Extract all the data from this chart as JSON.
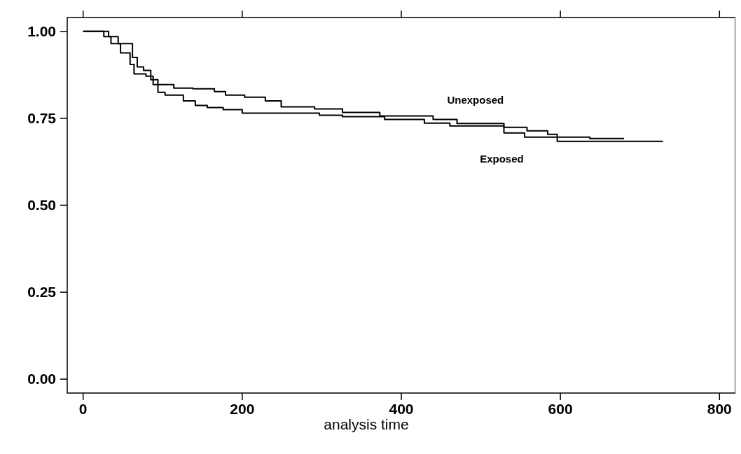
{
  "chart_data": {
    "type": "step",
    "xlabel": "analysis time",
    "xlim": [
      -20,
      820
    ],
    "xticks": [
      0,
      200,
      400,
      600,
      800
    ],
    "ylim": [
      -0.04,
      1.04
    ],
    "yticks": [
      {
        "value": 0,
        "label": "0.00"
      },
      {
        "value": 0.25,
        "label": "0.25"
      },
      {
        "value": 0.5,
        "label": "0.50"
      },
      {
        "value": 0.75,
        "label": "0.75"
      },
      {
        "value": 1,
        "label": "1.00"
      }
    ],
    "grid": false,
    "series": [
      {
        "name": "Unexposed",
        "color": "#000000",
        "x": [
          0,
          26,
          35,
          47,
          59,
          64,
          79,
          88,
          114,
          138,
          165,
          179,
          203,
          229,
          249,
          291,
          326,
          373,
          440,
          470,
          529,
          558,
          584,
          596,
          637,
          680
        ],
        "values": [
          1,
          0.985,
          0.965,
          0.938,
          0.905,
          0.878,
          0.871,
          0.847,
          0.837,
          0.835,
          0.827,
          0.817,
          0.811,
          0.8,
          0.783,
          0.777,
          0.767,
          0.757,
          0.747,
          0.735,
          0.724,
          0.714,
          0.704,
          0.696,
          0.692,
          0.692
        ]
      },
      {
        "name": "Exposed",
        "color": "#000000",
        "x": [
          0,
          32,
          44,
          62,
          68,
          76,
          85,
          94,
          103,
          126,
          141,
          156,
          176,
          200,
          297,
          326,
          379,
          429,
          461,
          529,
          555,
          596,
          729
        ],
        "values": [
          1,
          0.985,
          0.965,
          0.925,
          0.898,
          0.888,
          0.861,
          0.825,
          0.817,
          0.8,
          0.787,
          0.781,
          0.775,
          0.765,
          0.759,
          0.755,
          0.747,
          0.736,
          0.728,
          0.708,
          0.696,
          0.684,
          0.684
        ]
      }
    ]
  }
}
